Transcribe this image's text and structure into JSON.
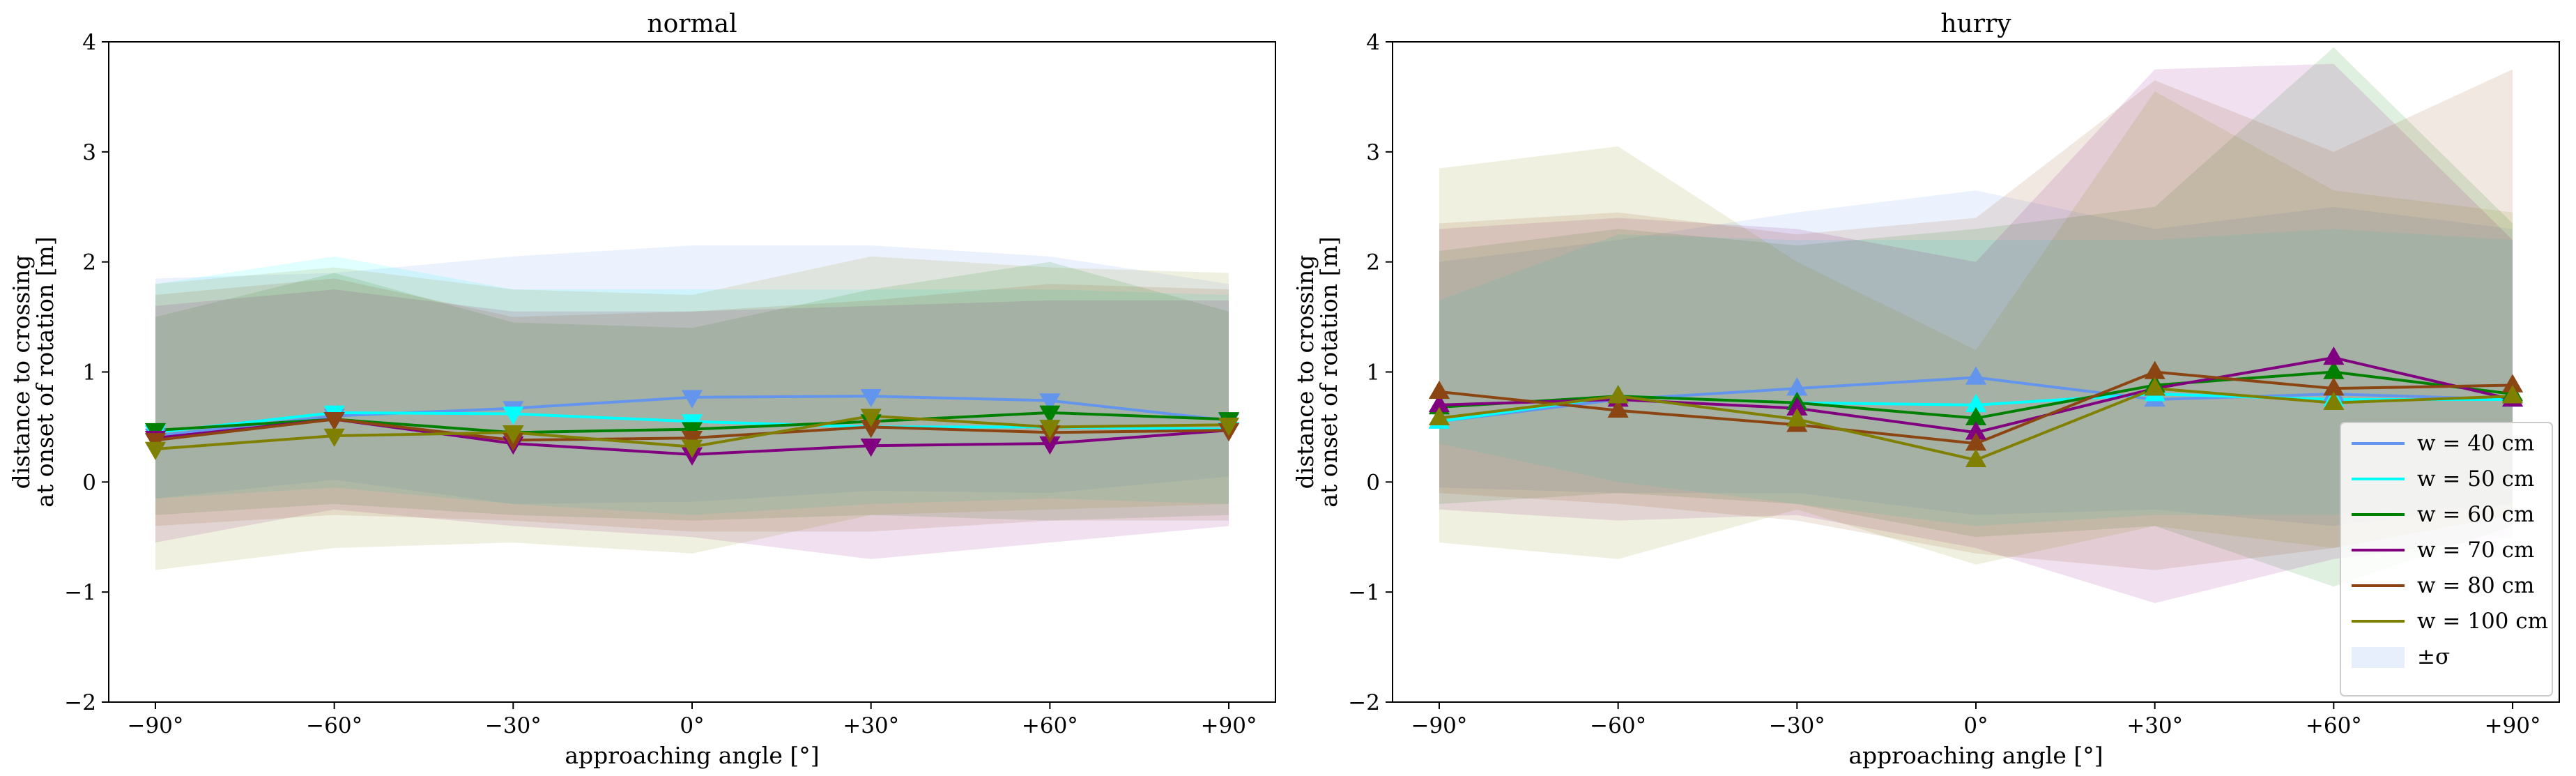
{
  "chart_data": [
    {
      "type": "line",
      "title": "normal",
      "xlabel": "approaching angle [°]",
      "ylabel": [
        "distance to crossing",
        "at onset of rotation [m]"
      ],
      "categories": [
        "−90°",
        "−60°",
        "−30°",
        "0°",
        "+30°",
        "+60°",
        "+90°"
      ],
      "ylim": [
        -2,
        4
      ],
      "yticks": [
        "−2",
        "−1",
        "0",
        "1",
        "2",
        "3",
        "4"
      ],
      "marker": "down-triangle",
      "series": [
        {
          "name": "w = 40 cm",
          "color": "#6495ED",
          "values": [
            0.42,
            0.6,
            0.67,
            0.77,
            0.78,
            0.74,
            0.56
          ],
          "lower": [
            -0.15,
            0.02,
            -0.2,
            -0.18,
            -0.08,
            -0.1,
            0.05
          ],
          "upper": [
            1.85,
            1.9,
            2.05,
            2.15,
            2.15,
            2.05,
            1.8
          ]
        },
        {
          "name": "w = 50 cm",
          "color": "#00FFFF",
          "values": [
            0.45,
            0.63,
            0.62,
            0.55,
            0.5,
            0.5,
            0.48
          ],
          "lower": [
            -0.15,
            -0.05,
            -0.2,
            -0.3,
            -0.2,
            -0.15,
            -0.2
          ],
          "upper": [
            1.8,
            2.05,
            1.75,
            1.75,
            1.75,
            1.75,
            1.7
          ]
        },
        {
          "name": "w = 60 cm",
          "color": "#008000",
          "values": [
            0.47,
            0.57,
            0.45,
            0.48,
            0.55,
            0.63,
            0.57
          ],
          "lower": [
            -0.3,
            -0.2,
            -0.3,
            -0.35,
            -0.3,
            -0.35,
            -0.3
          ],
          "upper": [
            1.5,
            1.9,
            1.45,
            1.4,
            1.75,
            2.0,
            1.55
          ]
        },
        {
          "name": "w = 70 cm",
          "color": "#800080",
          "values": [
            0.4,
            0.57,
            0.35,
            0.25,
            0.33,
            0.35,
            0.47
          ],
          "lower": [
            -0.55,
            -0.25,
            -0.4,
            -0.5,
            -0.7,
            -0.55,
            -0.4
          ],
          "upper": [
            1.6,
            1.75,
            1.55,
            1.55,
            1.6,
            1.65,
            1.65
          ]
        },
        {
          "name": "w = 80 cm",
          "color": "#8B4513",
          "values": [
            0.38,
            0.57,
            0.38,
            0.4,
            0.5,
            0.45,
            0.47
          ],
          "lower": [
            -0.4,
            -0.3,
            -0.35,
            -0.45,
            -0.45,
            -0.35,
            -0.35
          ],
          "upper": [
            1.7,
            1.85,
            1.5,
            1.55,
            1.65,
            1.8,
            1.75
          ]
        },
        {
          "name": "w = 100 cm",
          "color": "#808000",
          "values": [
            0.3,
            0.42,
            0.45,
            0.32,
            0.6,
            0.5,
            0.52
          ],
          "lower": [
            -0.8,
            -0.6,
            -0.55,
            -0.65,
            -0.3,
            -0.25,
            -0.2
          ],
          "upper": [
            1.8,
            1.95,
            1.75,
            1.7,
            2.05,
            1.95,
            1.9
          ]
        }
      ]
    },
    {
      "type": "line",
      "title": "hurry",
      "xlabel": "approaching angle [°]",
      "ylabel": [
        "distance to crossing",
        "at onset of rotation [m]"
      ],
      "categories": [
        "−90°",
        "−60°",
        "−30°",
        "0°",
        "+30°",
        "+60°",
        "+90°"
      ],
      "ylim": [
        -2,
        4
      ],
      "yticks": [
        "−2",
        "−1",
        "0",
        "1",
        "2",
        "3",
        "4"
      ],
      "marker": "up-triangle",
      "series": [
        {
          "name": "w = 40 cm",
          "color": "#6495ED",
          "values": [
            0.55,
            0.75,
            0.85,
            0.95,
            0.75,
            0.8,
            0.75
          ],
          "lower": [
            -0.05,
            -0.1,
            -0.1,
            -0.3,
            -0.25,
            -0.4,
            -0.2
          ],
          "upper": [
            2.0,
            2.2,
            2.45,
            2.65,
            2.3,
            2.5,
            2.3
          ]
        },
        {
          "name": "w = 50 cm",
          "color": "#00FFFF",
          "values": [
            0.55,
            0.78,
            0.72,
            0.7,
            0.8,
            0.75,
            0.75
          ],
          "lower": [
            0.35,
            0.0,
            -0.2,
            -0.4,
            -0.3,
            -0.3,
            -0.2
          ],
          "upper": [
            1.65,
            2.25,
            2.2,
            2.2,
            2.2,
            2.3,
            2.2
          ]
        },
        {
          "name": "w = 60 cm",
          "color": "#008000",
          "values": [
            0.68,
            0.78,
            0.72,
            0.58,
            0.88,
            1.0,
            0.8
          ],
          "lower": [
            -0.2,
            -0.1,
            -0.2,
            -0.5,
            -0.4,
            -0.95,
            -0.4
          ],
          "upper": [
            2.1,
            2.3,
            2.15,
            2.3,
            2.5,
            3.95,
            2.35
          ]
        },
        {
          "name": "w = 70 cm",
          "color": "#800080",
          "values": [
            0.7,
            0.75,
            0.67,
            0.45,
            0.85,
            1.13,
            0.75
          ],
          "lower": [
            -0.25,
            -0.35,
            -0.3,
            -0.6,
            -1.1,
            -0.7,
            -0.5
          ],
          "upper": [
            2.3,
            2.4,
            2.3,
            2.0,
            3.75,
            3.8,
            2.2
          ]
        },
        {
          "name": "w = 80 cm",
          "color": "#8B4513",
          "values": [
            0.82,
            0.65,
            0.52,
            0.35,
            1.0,
            0.85,
            0.88
          ],
          "lower": [
            -0.1,
            -0.2,
            -0.35,
            -0.65,
            -0.8,
            -0.6,
            -0.3
          ],
          "upper": [
            2.35,
            2.45,
            2.25,
            2.4,
            3.65,
            3.0,
            3.75
          ]
        },
        {
          "name": "w = 100 cm",
          "color": "#808000",
          "values": [
            0.58,
            0.78,
            0.57,
            0.2,
            0.85,
            0.72,
            0.78
          ],
          "lower": [
            -0.55,
            -0.7,
            -0.25,
            -0.75,
            -0.4,
            -0.6,
            -0.3
          ],
          "upper": [
            2.85,
            3.05,
            2.0,
            1.2,
            3.55,
            2.65,
            2.45
          ]
        }
      ],
      "legend": {
        "placement": "lower-right",
        "entries": [
          "w = 40 cm",
          "w = 50 cm",
          "w = 60 cm",
          "w = 70 cm",
          "w = 80 cm",
          "w = 100 cm",
          "±σ"
        ]
      }
    }
  ]
}
